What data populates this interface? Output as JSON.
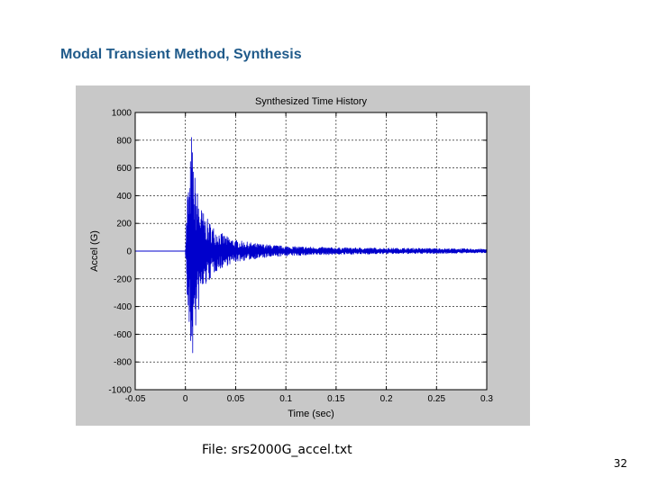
{
  "slide": {
    "title": "Modal Transient Method, Synthesis",
    "file_caption": "File:  srs2000G_accel.txt",
    "page_number": "32"
  },
  "chart_data": {
    "type": "line",
    "title": "Synthesized Time History",
    "xlabel": "Time (sec)",
    "ylabel": "Accel (G)",
    "xlim": [
      -0.05,
      0.3
    ],
    "ylim": [
      -1000,
      1000
    ],
    "xticks": [
      -0.05,
      0,
      0.05,
      0.1,
      0.15,
      0.2,
      0.25,
      0.3
    ],
    "xtick_labels": [
      "-0.05",
      "0",
      "0.05",
      "0.1",
      "0.15",
      "0.2",
      "0.25",
      "0.3"
    ],
    "yticks": [
      -1000,
      -800,
      -600,
      -400,
      -200,
      0,
      200,
      400,
      600,
      800,
      1000
    ],
    "ytick_labels": [
      "-1000",
      "-800",
      "-600",
      "-400",
      "-200",
      "0",
      "200",
      "400",
      "600",
      "800",
      "1000"
    ],
    "grid": true,
    "line_color": "#0000cc",
    "panel_color": "#c8c8c8",
    "series": [
      {
        "envelope": {
          "t": [
            -0.05,
            0.0,
            0.001,
            0.002,
            0.004,
            0.006,
            0.008,
            0.01,
            0.015,
            0.02,
            0.03,
            0.04,
            0.05,
            0.07,
            0.1,
            0.15,
            0.2,
            0.25,
            0.3
          ],
          "pos_peak": [
            0,
            0,
            250,
            480,
            500,
            870,
            650,
            520,
            330,
            250,
            160,
            110,
            80,
            55,
            35,
            25,
            22,
            20,
            15
          ],
          "neg_peak": [
            0,
            0,
            -180,
            -450,
            -680,
            -800,
            -780,
            -600,
            -360,
            -260,
            -150,
            -110,
            -80,
            -55,
            -35,
            -25,
            -20,
            -18,
            -12
          ]
        }
      }
    ]
  }
}
